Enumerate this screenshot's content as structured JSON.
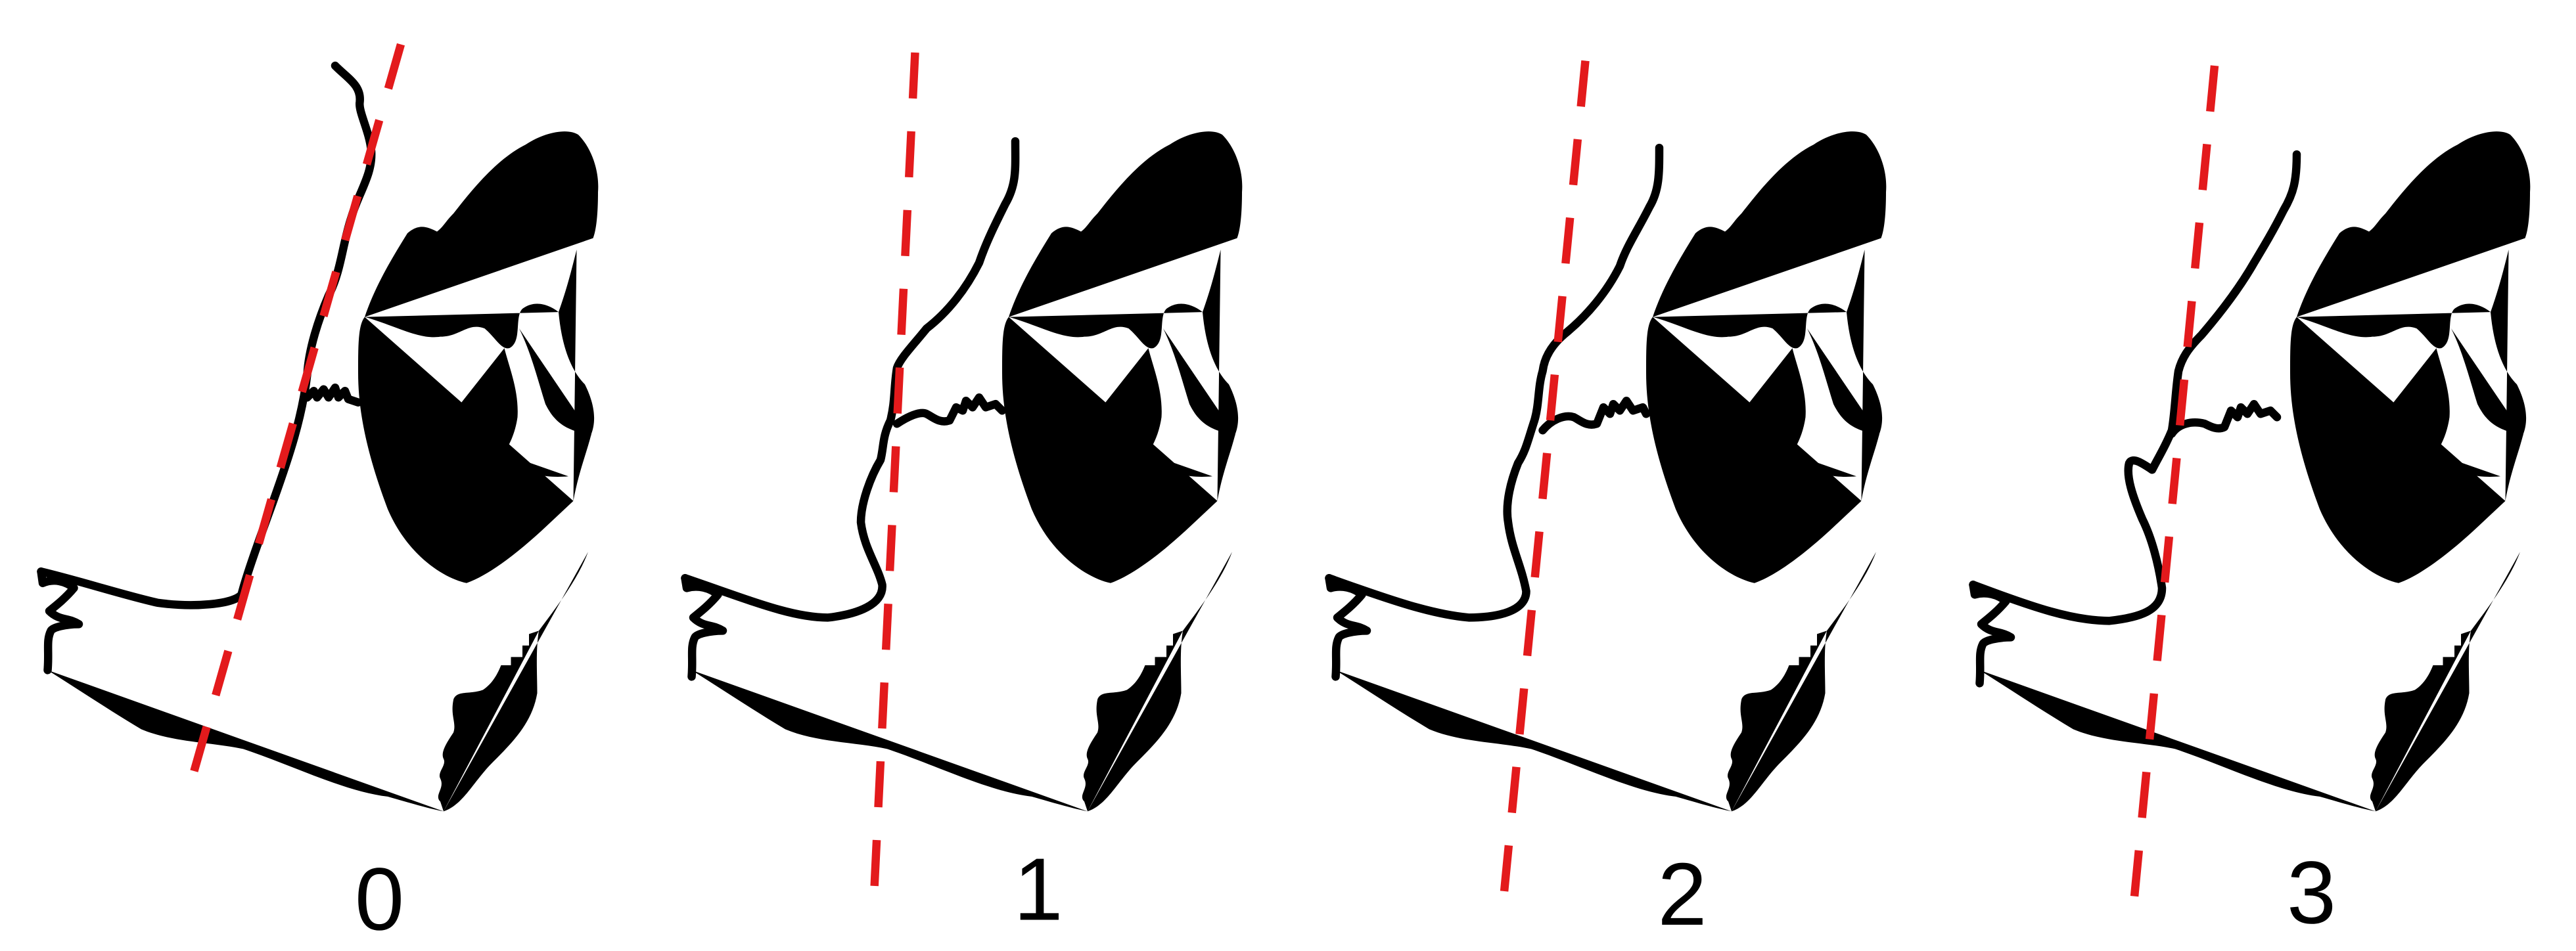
{
  "colors": {
    "outline": "#000000",
    "reference_line": "#e31a1c",
    "background": "#ffffff"
  },
  "panels": [
    {
      "label": "0"
    },
    {
      "label": "1"
    },
    {
      "label": "2"
    },
    {
      "label": "3"
    }
  ]
}
